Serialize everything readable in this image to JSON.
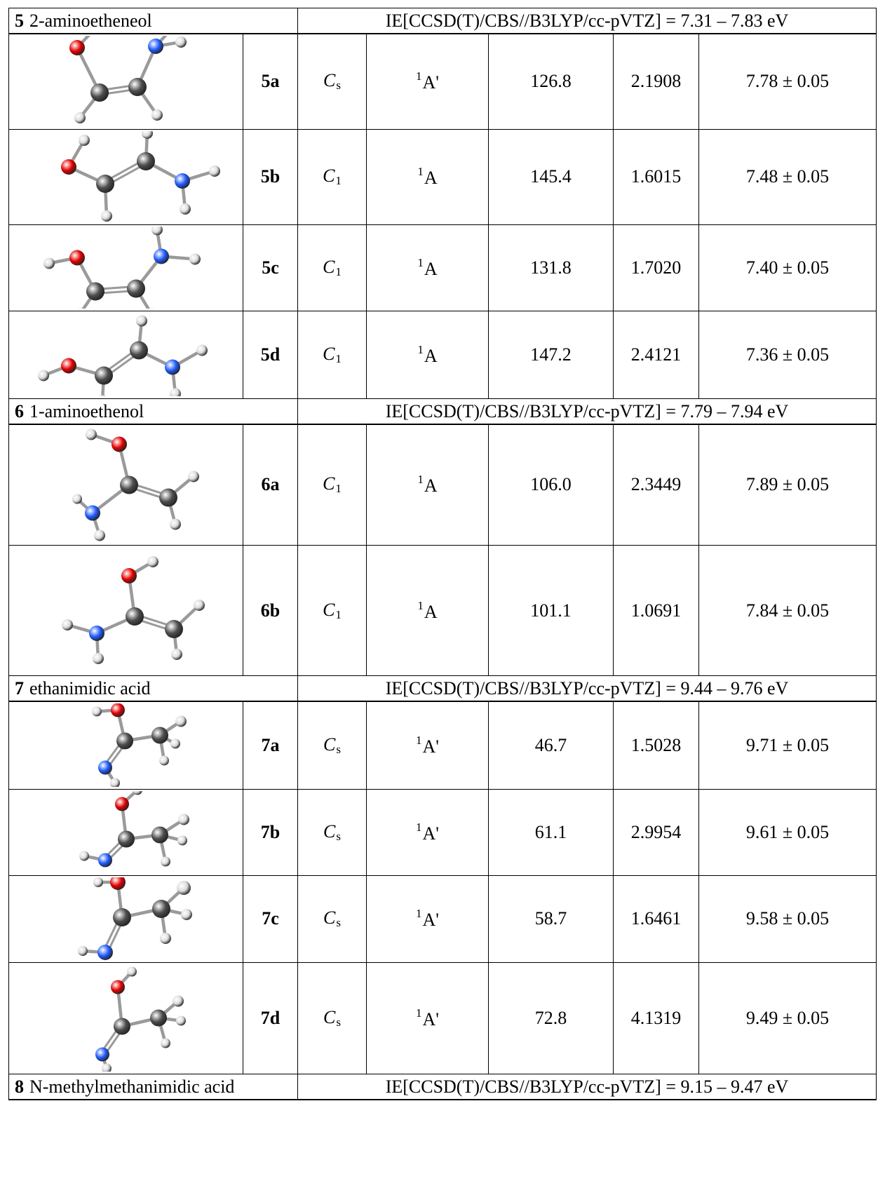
{
  "sections": [
    {
      "number": "5",
      "name": "2-aminoetheneol",
      "ie": "IE[CCSD(T)/CBS//B3LYP/cc-pVTZ] = 7.31 – 7.83 eV",
      "rows": [
        {
          "label": "5a",
          "sym": "C",
          "sym_sub": "s",
          "state_sup": "1",
          "state": "A'",
          "v1": "126.8",
          "v2": "2.1908",
          "ie": "7.78 ± 0.05",
          "h": 136,
          "mol": "5a"
        },
        {
          "label": "5b",
          "sym": "C",
          "sym_sub": "1",
          "state_sup": "1",
          "state": "A",
          "v1": "145.4",
          "v2": "1.6015",
          "ie": "7.48 ± 0.05",
          "h": 136,
          "mol": "5b"
        },
        {
          "label": "5c",
          "sym": "C",
          "sym_sub": "1",
          "state_sup": "1",
          "state": "A",
          "v1": "131.8",
          "v2": "1.7020",
          "ie": "7.40 ± 0.05",
          "h": 123,
          "mol": "5c"
        },
        {
          "label": "5d",
          "sym": "C",
          "sym_sub": "1",
          "state_sup": "1",
          "state": "A",
          "v1": "147.2",
          "v2": "2.4121",
          "ie": "7.36 ± 0.05",
          "h": 125,
          "mol": "5d"
        }
      ]
    },
    {
      "number": "6",
      "name": "1-aminoethenol",
      "ie": "IE[CCSD(T)/CBS//B3LYP/cc-pVTZ] = 7.79 – 7.94 eV",
      "rows": [
        {
          "label": "6a",
          "sym": "C",
          "sym_sub": "1",
          "state_sup": "1",
          "state": "A",
          "v1": "106.0",
          "v2": "2.3449",
          "ie": "7.89 ± 0.05",
          "h": 173,
          "mol": "6a"
        },
        {
          "label": "6b",
          "sym": "C",
          "sym_sub": "1",
          "state_sup": "1",
          "state": "A",
          "v1": "101.1",
          "v2": "1.0691",
          "ie": "7.84 ± 0.05",
          "h": 186,
          "mol": "6b"
        }
      ]
    },
    {
      "number": "7",
      "name": "ethanimidic acid",
      "ie": "IE[CCSD(T)/CBS//B3LYP/cc-pVTZ] = 9.44 – 9.76 eV",
      "rows": [
        {
          "label": "7a",
          "sym": "C",
          "sym_sub": "s",
          "state_sup": "1",
          "state": "A'",
          "v1": "46.7",
          "v2": "1.5028",
          "ie": "9.71 ± 0.05",
          "h": 125,
          "mol": "7a"
        },
        {
          "label": "7b",
          "sym": "C",
          "sym_sub": "s",
          "state_sup": "1",
          "state": "A'",
          "v1": "61.1",
          "v2": "2.9954",
          "ie": "9.61 ± 0.05",
          "h": 123,
          "mol": "7b"
        },
        {
          "label": "7c",
          "sym": "C",
          "sym_sub": "s",
          "state_sup": "1",
          "state": "A'",
          "v1": "58.7",
          "v2": "1.6461",
          "ie": "9.58 ± 0.05",
          "h": 124,
          "mol": "7c"
        },
        {
          "label": "7d",
          "sym": "C",
          "sym_sub": "s",
          "state_sup": "1",
          "state": "A'",
          "v1": "72.8",
          "v2": "4.1319",
          "ie": "9.49 ± 0.05",
          "h": 159,
          "mol": "7d"
        }
      ]
    },
    {
      "number": "8",
      "name": "N-methylmethanimidic acid",
      "ie": "IE[CCSD(T)/CBS//B3LYP/cc-pVTZ] = 9.15 – 9.47 eV",
      "rows": []
    }
  ],
  "atom_colors": {
    "H": "#dcdcdc",
    "C": "#4d4d4d",
    "O": "#e60000",
    "N": "#1f5bff"
  },
  "molecules": {
    "5a": {
      "atoms": [
        [
          "O",
          -70,
          -48,
          11
        ],
        [
          "H",
          -42,
          -78,
          8
        ],
        [
          "C",
          -38,
          16,
          13
        ],
        [
          "C",
          16,
          8,
          13
        ],
        [
          "N",
          42,
          -50,
          11
        ],
        [
          "H",
          78,
          -56,
          8
        ],
        [
          "H",
          62,
          -72,
          7
        ],
        [
          "H",
          -66,
          52,
          8
        ],
        [
          "H",
          44,
          48,
          8
        ]
      ],
      "bonds": [
        [
          0,
          1
        ],
        [
          0,
          2
        ],
        [
          2,
          3
        ],
        [
          3,
          4
        ],
        [
          4,
          5
        ],
        [
          4,
          6
        ],
        [
          2,
          7
        ],
        [
          3,
          8
        ]
      ],
      "double": [
        [
          2,
          3
        ]
      ]
    },
    "5b": {
      "atoms": [
        [
          "O",
          -82,
          -14,
          11
        ],
        [
          "H",
          -60,
          -52,
          8
        ],
        [
          "C",
          -30,
          10,
          13
        ],
        [
          "C",
          28,
          -22,
          13
        ],
        [
          "H",
          30,
          -62,
          8
        ],
        [
          "N",
          80,
          6,
          11
        ],
        [
          "H",
          126,
          -8,
          8
        ],
        [
          "H",
          84,
          46,
          8
        ],
        [
          "H",
          -28,
          56,
          8
        ]
      ],
      "bonds": [
        [
          0,
          1
        ],
        [
          0,
          2
        ],
        [
          2,
          3
        ],
        [
          3,
          4
        ],
        [
          3,
          5
        ],
        [
          5,
          6
        ],
        [
          5,
          7
        ],
        [
          2,
          8
        ]
      ],
      "double": [
        [
          2,
          3
        ]
      ]
    },
    "5c": {
      "atoms": [
        [
          "H",
          -110,
          -6,
          8
        ],
        [
          "O",
          -70,
          -14,
          11
        ],
        [
          "C",
          -44,
          34,
          13
        ],
        [
          "C",
          14,
          30,
          13
        ],
        [
          "N",
          50,
          -16,
          11
        ],
        [
          "H",
          44,
          -54,
          8
        ],
        [
          "H",
          98,
          -12,
          8
        ],
        [
          "H",
          -66,
          66,
          8
        ],
        [
          "H",
          36,
          66,
          8
        ]
      ],
      "bonds": [
        [
          0,
          1
        ],
        [
          1,
          2
        ],
        [
          2,
          3
        ],
        [
          3,
          4
        ],
        [
          4,
          5
        ],
        [
          4,
          6
        ],
        [
          2,
          7
        ],
        [
          3,
          8
        ]
      ],
      "double": [
        [
          2,
          3
        ]
      ]
    },
    "5d": {
      "atoms": [
        [
          "H",
          -118,
          30,
          8
        ],
        [
          "O",
          -82,
          16,
          11
        ],
        [
          "C",
          -32,
          30,
          13
        ],
        [
          "C",
          18,
          -6,
          13
        ],
        [
          "H",
          22,
          -48,
          8
        ],
        [
          "N",
          66,
          18,
          11
        ],
        [
          "H",
          108,
          -6,
          8
        ],
        [
          "H",
          70,
          56,
          8
        ],
        [
          "H",
          -34,
          66,
          8
        ]
      ],
      "bonds": [
        [
          0,
          1
        ],
        [
          1,
          2
        ],
        [
          2,
          3
        ],
        [
          3,
          4
        ],
        [
          3,
          5
        ],
        [
          5,
          6
        ],
        [
          5,
          7
        ],
        [
          2,
          8
        ]
      ],
      "double": [
        [
          2,
          3
        ]
      ]
    },
    "6a": {
      "atoms": [
        [
          "H",
          -50,
          -72,
          8
        ],
        [
          "O",
          -10,
          -58,
          11
        ],
        [
          "C",
          4,
          0,
          13
        ],
        [
          "N",
          -48,
          40,
          11
        ],
        [
          "H",
          -70,
          20,
          7
        ],
        [
          "H",
          -38,
          72,
          8
        ],
        [
          "C",
          60,
          18,
          13
        ],
        [
          "H",
          96,
          -12,
          8
        ],
        [
          "H",
          70,
          56,
          8
        ]
      ],
      "bonds": [
        [
          0,
          1
        ],
        [
          1,
          2
        ],
        [
          2,
          3
        ],
        [
          3,
          4
        ],
        [
          3,
          5
        ],
        [
          2,
          6
        ],
        [
          6,
          7
        ],
        [
          6,
          8
        ]
      ],
      "double": [
        [
          2,
          6
        ]
      ]
    },
    "6b": {
      "atoms": [
        [
          "H",
          38,
          -70,
          8
        ],
        [
          "O",
          4,
          -50,
          11
        ],
        [
          "C",
          12,
          8,
          13
        ],
        [
          "N",
          -42,
          32,
          11
        ],
        [
          "H",
          -84,
          20,
          8
        ],
        [
          "H",
          -40,
          68,
          8
        ],
        [
          "C",
          68,
          26,
          13
        ],
        [
          "H",
          104,
          -8,
          8
        ],
        [
          "H",
          72,
          62,
          8
        ]
      ],
      "bonds": [
        [
          0,
          1
        ],
        [
          1,
          2
        ],
        [
          2,
          3
        ],
        [
          3,
          4
        ],
        [
          3,
          5
        ],
        [
          2,
          6
        ],
        [
          6,
          7
        ],
        [
          6,
          8
        ]
      ],
      "double": [
        [
          2,
          6
        ]
      ]
    },
    "7a": {
      "atoms": [
        [
          "H",
          -42,
          -48,
          7
        ],
        [
          "O",
          -12,
          -50,
          10
        ],
        [
          "C",
          -2,
          -6,
          12
        ],
        [
          "N",
          -30,
          32,
          10
        ],
        [
          "H",
          -16,
          54,
          7
        ],
        [
          "C",
          48,
          -14,
          12
        ],
        [
          "H",
          78,
          -34,
          8
        ],
        [
          "H",
          70,
          -2,
          7
        ],
        [
          "H",
          54,
          22,
          7
        ]
      ],
      "bonds": [
        [
          0,
          1
        ],
        [
          1,
          2
        ],
        [
          2,
          3
        ],
        [
          3,
          4
        ],
        [
          2,
          5
        ],
        [
          5,
          6
        ],
        [
          5,
          7
        ],
        [
          5,
          8
        ]
      ],
      "double": [
        [
          2,
          3
        ]
      ]
    },
    "7b": {
      "atoms": [
        [
          "H",
          16,
          -60,
          7
        ],
        [
          "O",
          -6,
          -40,
          10
        ],
        [
          "C",
          0,
          10,
          12
        ],
        [
          "N",
          -30,
          40,
          10
        ],
        [
          "H",
          -60,
          34,
          7
        ],
        [
          "C",
          48,
          4,
          12
        ],
        [
          "H",
          82,
          -18,
          8
        ],
        [
          "H",
          80,
          12,
          7
        ],
        [
          "H",
          56,
          42,
          7
        ]
      ],
      "bonds": [
        [
          0,
          1
        ],
        [
          1,
          2
        ],
        [
          2,
          3
        ],
        [
          3,
          4
        ],
        [
          2,
          5
        ],
        [
          5,
          6
        ],
        [
          5,
          7
        ],
        [
          5,
          8
        ]
      ],
      "double": [
        [
          2,
          3
        ]
      ]
    },
    "7c": {
      "atoms": [
        [
          "H",
          -40,
          -52,
          7
        ],
        [
          "O",
          -12,
          -52,
          11
        ],
        [
          "C",
          -6,
          -2,
          13
        ],
        [
          "N",
          -30,
          48,
          11
        ],
        [
          "H",
          -62,
          46,
          7
        ],
        [
          "C",
          50,
          -14,
          13
        ],
        [
          "H",
          82,
          -44,
          10
        ],
        [
          "H",
          86,
          -6,
          8
        ],
        [
          "H",
          56,
          28,
          8
        ]
      ],
      "bonds": [
        [
          0,
          1
        ],
        [
          1,
          2
        ],
        [
          2,
          3
        ],
        [
          3,
          4
        ],
        [
          2,
          5
        ],
        [
          5,
          6
        ],
        [
          5,
          7
        ],
        [
          5,
          8
        ]
      ],
      "double": [
        [
          2,
          3
        ]
      ]
    },
    "7d": {
      "atoms": [
        [
          "H",
          8,
          -66,
          7
        ],
        [
          "O",
          -12,
          -44,
          10
        ],
        [
          "C",
          -6,
          12,
          12
        ],
        [
          "N",
          -34,
          52,
          10
        ],
        [
          "H",
          -28,
          72,
          7
        ],
        [
          "C",
          46,
          0,
          12
        ],
        [
          "H",
          74,
          -24,
          8
        ],
        [
          "H",
          78,
          4,
          7
        ],
        [
          "H",
          56,
          36,
          7
        ]
      ],
      "bonds": [
        [
          0,
          1
        ],
        [
          1,
          2
        ],
        [
          2,
          3
        ],
        [
          3,
          4
        ],
        [
          2,
          5
        ],
        [
          5,
          6
        ],
        [
          5,
          7
        ],
        [
          5,
          8
        ]
      ],
      "double": [
        [
          2,
          3
        ]
      ]
    }
  }
}
